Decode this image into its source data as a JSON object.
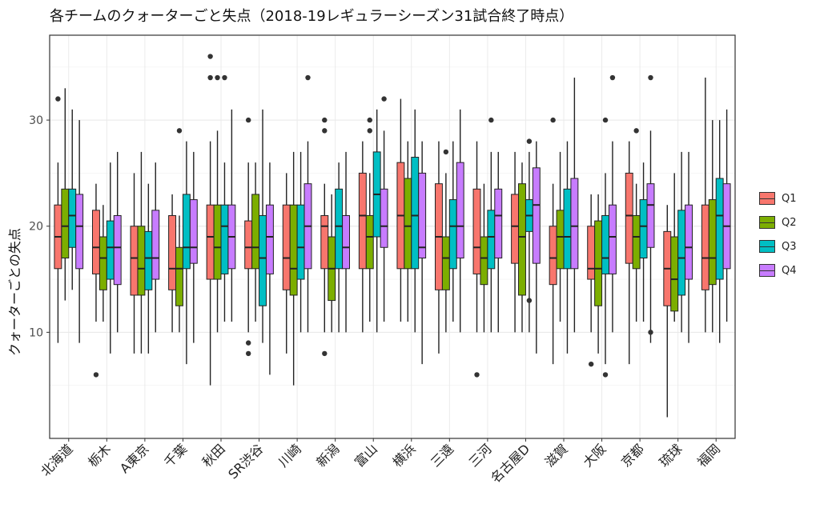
{
  "chart_data": {
    "type": "boxplot",
    "title": "各チームのクォーターごと失点（2018-19レギュラーシーズン31試合終了時点）",
    "xlabel": "",
    "ylabel": "クォーターごとの失点",
    "ylim": [
      0,
      38
    ],
    "yticks": [
      10,
      20,
      30
    ],
    "grid": true,
    "legend_position": "right",
    "categories": [
      "北海道",
      "栃木",
      "A東京",
      "千葉",
      "秋田",
      "SR渋谷",
      "川崎",
      "新潟",
      "富山",
      "横浜",
      "三遠",
      "三河",
      "名古屋D",
      "滋賀",
      "大阪",
      "京都",
      "琉球",
      "福岡"
    ],
    "series": [
      {
        "name": "Q1",
        "color": "#F8766D",
        "boxes": [
          {
            "min": 9,
            "q1": 16,
            "median": 19,
            "q3": 22,
            "max": 26,
            "outliers": [
              32
            ]
          },
          {
            "min": 11,
            "q1": 15.5,
            "median": 18,
            "q3": 21.5,
            "max": 24,
            "outliers": [
              6
            ]
          },
          {
            "min": 8,
            "q1": 13.5,
            "median": 17,
            "q3": 20,
            "max": 25,
            "outliers": []
          },
          {
            "min": 10,
            "q1": 14,
            "median": 16,
            "q3": 21,
            "max": 23,
            "outliers": []
          },
          {
            "min": 5,
            "q1": 15,
            "median": 19,
            "q3": 22,
            "max": 28,
            "outliers": [
              34,
              36
            ]
          },
          {
            "min": 10,
            "q1": 16,
            "median": 18,
            "q3": 20.5,
            "max": 26,
            "outliers": [
              8,
              9,
              30
            ]
          },
          {
            "min": 8,
            "q1": 14,
            "median": 17,
            "q3": 22,
            "max": 25,
            "outliers": []
          },
          {
            "min": 10,
            "q1": 16,
            "median": 20,
            "q3": 21,
            "max": 24,
            "outliers": [
              8,
              29,
              30
            ]
          },
          {
            "min": 10,
            "q1": 16,
            "median": 21,
            "q3": 25,
            "max": 28,
            "outliers": []
          },
          {
            "min": 11,
            "q1": 16,
            "median": 21,
            "q3": 26,
            "max": 32,
            "outliers": []
          },
          {
            "min": 8,
            "q1": 14,
            "median": 19,
            "q3": 24,
            "max": 28,
            "outliers": []
          },
          {
            "min": 10,
            "q1": 15.5,
            "median": 18,
            "q3": 23.5,
            "max": 28,
            "outliers": [
              6
            ]
          },
          {
            "min": 10,
            "q1": 16.5,
            "median": 20,
            "q3": 23,
            "max": 27,
            "outliers": []
          },
          {
            "min": 7,
            "q1": 14.5,
            "median": 17,
            "q3": 20,
            "max": 24,
            "outliers": [
              30
            ]
          },
          {
            "min": 10,
            "q1": 15,
            "median": 16,
            "q3": 20,
            "max": 23,
            "outliers": [
              7
            ]
          },
          {
            "min": 7,
            "q1": 16.5,
            "median": 21,
            "q3": 25,
            "max": 28,
            "outliers": []
          },
          {
            "min": 2,
            "q1": 12.5,
            "median": 16,
            "q3": 19.5,
            "max": 22,
            "outliers": []
          },
          {
            "min": 10,
            "q1": 14,
            "median": 17,
            "q3": 22,
            "max": 34,
            "outliers": []
          }
        ]
      },
      {
        "name": "Q2",
        "color": "#7CAE00",
        "boxes": [
          {
            "min": 13,
            "q1": 17,
            "median": 20,
            "q3": 23.5,
            "max": 33,
            "outliers": []
          },
          {
            "min": 11,
            "q1": 14,
            "median": 17,
            "q3": 19,
            "max": 22,
            "outliers": []
          },
          {
            "min": 8,
            "q1": 13.5,
            "median": 16,
            "q3": 20,
            "max": 27,
            "outliers": []
          },
          {
            "min": 10,
            "q1": 12.5,
            "median": 16,
            "q3": 18,
            "max": 21,
            "outliers": [
              29
            ]
          },
          {
            "min": 10,
            "q1": 15,
            "median": 18,
            "q3": 22,
            "max": 29,
            "outliers": [
              34
            ]
          },
          {
            "min": 11,
            "q1": 16,
            "median": 18,
            "q3": 23,
            "max": 26,
            "outliers": []
          },
          {
            "min": 5,
            "q1": 13.5,
            "median": 16,
            "q3": 22,
            "max": 27,
            "outliers": []
          },
          {
            "min": 10,
            "q1": 13,
            "median": 16,
            "q3": 19,
            "max": 23,
            "outliers": []
          },
          {
            "min": 11,
            "q1": 16,
            "median": 19,
            "q3": 21,
            "max": 25,
            "outliers": [
              29,
              30
            ]
          },
          {
            "min": 11,
            "q1": 16,
            "median": 20,
            "q3": 24.5,
            "max": 28,
            "outliers": []
          },
          {
            "min": 10,
            "q1": 14,
            "median": 17,
            "q3": 19,
            "max": 25,
            "outliers": [
              27
            ]
          },
          {
            "min": 10,
            "q1": 14.5,
            "median": 17,
            "q3": 19,
            "max": 24,
            "outliers": []
          },
          {
            "min": 10,
            "q1": 13.5,
            "median": 19,
            "q3": 24,
            "max": 26,
            "outliers": []
          },
          {
            "min": 11,
            "q1": 16,
            "median": 19,
            "q3": 21.5,
            "max": 27,
            "outliers": []
          },
          {
            "min": 8,
            "q1": 12.5,
            "median": 16,
            "q3": 20.5,
            "max": 23,
            "outliers": []
          },
          {
            "min": 11,
            "q1": 16,
            "median": 19,
            "q3": 21,
            "max": 24,
            "outliers": [
              29
            ]
          },
          {
            "min": 11,
            "q1": 12,
            "median": 15,
            "q3": 19,
            "max": 25,
            "outliers": []
          },
          {
            "min": 10,
            "q1": 14.5,
            "median": 17,
            "q3": 22.5,
            "max": 30,
            "outliers": []
          }
        ]
      },
      {
        "name": "Q3",
        "color": "#00BFC4",
        "boxes": [
          {
            "min": 14,
            "q1": 18,
            "median": 21,
            "q3": 23.5,
            "max": 31,
            "outliers": []
          },
          {
            "min": 8,
            "q1": 15,
            "median": 18,
            "q3": 20.5,
            "max": 26,
            "outliers": []
          },
          {
            "min": 8,
            "q1": 14,
            "median": 17,
            "q3": 19.5,
            "max": 24,
            "outliers": []
          },
          {
            "min": 7,
            "q1": 16,
            "median": 18,
            "q3": 23,
            "max": 28,
            "outliers": []
          },
          {
            "min": 11,
            "q1": 15.5,
            "median": 20,
            "q3": 22,
            "max": 26,
            "outliers": [
              34
            ]
          },
          {
            "min": 9,
            "q1": 12.5,
            "median": 17,
            "q3": 21,
            "max": 31,
            "outliers": []
          },
          {
            "min": 10,
            "q1": 15,
            "median": 18,
            "q3": 22,
            "max": 27,
            "outliers": []
          },
          {
            "min": 10,
            "q1": 16,
            "median": 20,
            "q3": 23.5,
            "max": 26,
            "outliers": []
          },
          {
            "min": 10,
            "q1": 19,
            "median": 23,
            "q3": 27,
            "max": 31,
            "outliers": []
          },
          {
            "min": 10,
            "q1": 16,
            "median": 21,
            "q3": 26.5,
            "max": 31,
            "outliers": []
          },
          {
            "min": 11,
            "q1": 16,
            "median": 20,
            "q3": 22.5,
            "max": 28,
            "outliers": []
          },
          {
            "min": 10,
            "q1": 16,
            "median": 19,
            "q3": 21.5,
            "max": 27,
            "outliers": [
              30
            ]
          },
          {
            "min": 10,
            "q1": 19.5,
            "median": 21,
            "q3": 22.5,
            "max": 27,
            "outliers": [
              13,
              28
            ]
          },
          {
            "min": 8,
            "q1": 16,
            "median": 19,
            "q3": 23.5,
            "max": 28,
            "outliers": []
          },
          {
            "min": 7,
            "q1": 15.5,
            "median": 17,
            "q3": 21,
            "max": 25,
            "outliers": [
              6,
              30
            ]
          },
          {
            "min": 11,
            "q1": 17,
            "median": 20,
            "q3": 22.5,
            "max": 26,
            "outliers": []
          },
          {
            "min": 10,
            "q1": 13.5,
            "median": 17,
            "q3": 21.5,
            "max": 27,
            "outliers": []
          },
          {
            "min": 9,
            "q1": 15,
            "median": 21,
            "q3": 24.5,
            "max": 30,
            "outliers": []
          }
        ]
      },
      {
        "name": "Q4",
        "color": "#C77CFF",
        "boxes": [
          {
            "min": 9,
            "q1": 16,
            "median": 20,
            "q3": 23,
            "max": 30,
            "outliers": []
          },
          {
            "min": 10,
            "q1": 14.5,
            "median": 18,
            "q3": 21,
            "max": 27,
            "outliers": []
          },
          {
            "min": 10,
            "q1": 15,
            "median": 17,
            "q3": 21.5,
            "max": 26,
            "outliers": []
          },
          {
            "min": 9,
            "q1": 16.5,
            "median": 18,
            "q3": 22.5,
            "max": 27,
            "outliers": []
          },
          {
            "min": 11,
            "q1": 16,
            "median": 19,
            "q3": 22,
            "max": 31,
            "outliers": []
          },
          {
            "min": 6,
            "q1": 15.5,
            "median": 19,
            "q3": 22,
            "max": 26,
            "outliers": []
          },
          {
            "min": 10,
            "q1": 16,
            "median": 20,
            "q3": 24,
            "max": 28,
            "outliers": [
              34
            ]
          },
          {
            "min": 10,
            "q1": 16,
            "median": 18,
            "q3": 21,
            "max": 27,
            "outliers": []
          },
          {
            "min": 11,
            "q1": 18,
            "median": 20,
            "q3": 23.5,
            "max": 29,
            "outliers": [
              32
            ]
          },
          {
            "min": 7,
            "q1": 17,
            "median": 18,
            "q3": 25,
            "max": 28,
            "outliers": []
          },
          {
            "min": 10,
            "q1": 17,
            "median": 20,
            "q3": 26,
            "max": 31,
            "outliers": []
          },
          {
            "min": 10,
            "q1": 17,
            "median": 21,
            "q3": 23.5,
            "max": 27,
            "outliers": []
          },
          {
            "min": 8,
            "q1": 16.5,
            "median": 22,
            "q3": 25.5,
            "max": 28,
            "outliers": []
          },
          {
            "min": 10,
            "q1": 16,
            "median": 20,
            "q3": 24.5,
            "max": 34,
            "outliers": []
          },
          {
            "min": 10,
            "q1": 15.5,
            "median": 19,
            "q3": 22,
            "max": 28,
            "outliers": [
              34
            ]
          },
          {
            "min": 9,
            "q1": 18,
            "median": 22,
            "q3": 24,
            "max": 29,
            "outliers": [
              10,
              34
            ]
          },
          {
            "min": 9,
            "q1": 15,
            "median": 18,
            "q3": 22,
            "max": 27,
            "outliers": []
          },
          {
            "min": 11,
            "q1": 16,
            "median": 20,
            "q3": 24,
            "max": 31,
            "outliers": []
          }
        ]
      }
    ]
  }
}
